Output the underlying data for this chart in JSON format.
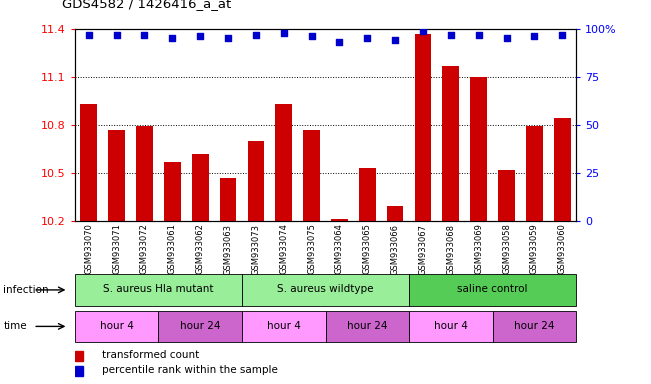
{
  "title": "GDS4582 / 1426416_a_at",
  "samples": [
    "GSM933070",
    "GSM933071",
    "GSM933072",
    "GSM933061",
    "GSM933062",
    "GSM933063",
    "GSM933073",
    "GSM933074",
    "GSM933075",
    "GSM933064",
    "GSM933065",
    "GSM933066",
    "GSM933067",
    "GSM933068",
    "GSM933069",
    "GSM933058",
    "GSM933059",
    "GSM933060"
  ],
  "bar_values": [
    10.93,
    10.77,
    10.79,
    10.57,
    10.62,
    10.47,
    10.7,
    10.93,
    10.77,
    10.21,
    10.53,
    10.29,
    11.37,
    11.17,
    11.1,
    10.52,
    10.79,
    10.84
  ],
  "percentile_values": [
    97,
    97,
    97,
    95,
    96,
    95,
    97,
    98,
    96,
    93,
    95,
    94,
    99,
    97,
    97,
    95,
    96,
    97
  ],
  "ylim_left": [
    10.2,
    11.4
  ],
  "ylim_right": [
    0,
    100
  ],
  "yticks_left": [
    10.2,
    10.5,
    10.8,
    11.1,
    11.4
  ],
  "yticks_right": [
    0,
    25,
    50,
    75,
    100
  ],
  "ytick_labels_right": [
    "0",
    "25",
    "50",
    "75",
    "100%"
  ],
  "bar_color": "#cc0000",
  "dot_color": "#0000cc",
  "bg_color": "#ffffff",
  "groups": [
    {
      "label": "S. aureus Hla mutant",
      "start": 0,
      "end": 6,
      "color": "#99ee99"
    },
    {
      "label": "S. aureus wildtype",
      "start": 6,
      "end": 12,
      "color": "#99ee99"
    },
    {
      "label": "saline control",
      "start": 12,
      "end": 18,
      "color": "#55cc55"
    }
  ],
  "time_groups": [
    {
      "label": "hour 4",
      "start": 0,
      "end": 3,
      "color": "#ff99ff"
    },
    {
      "label": "hour 24",
      "start": 3,
      "end": 6,
      "color": "#cc66cc"
    },
    {
      "label": "hour 4",
      "start": 6,
      "end": 9,
      "color": "#ff99ff"
    },
    {
      "label": "hour 24",
      "start": 9,
      "end": 12,
      "color": "#cc66cc"
    },
    {
      "label": "hour 4",
      "start": 12,
      "end": 15,
      "color": "#ff99ff"
    },
    {
      "label": "hour 24",
      "start": 15,
      "end": 18,
      "color": "#cc66cc"
    }
  ],
  "legend_items": [
    {
      "label": "transformed count",
      "color": "#cc0000"
    },
    {
      "label": "percentile rank within the sample",
      "color": "#0000cc"
    }
  ],
  "infection_label": "infection",
  "time_label": "time"
}
